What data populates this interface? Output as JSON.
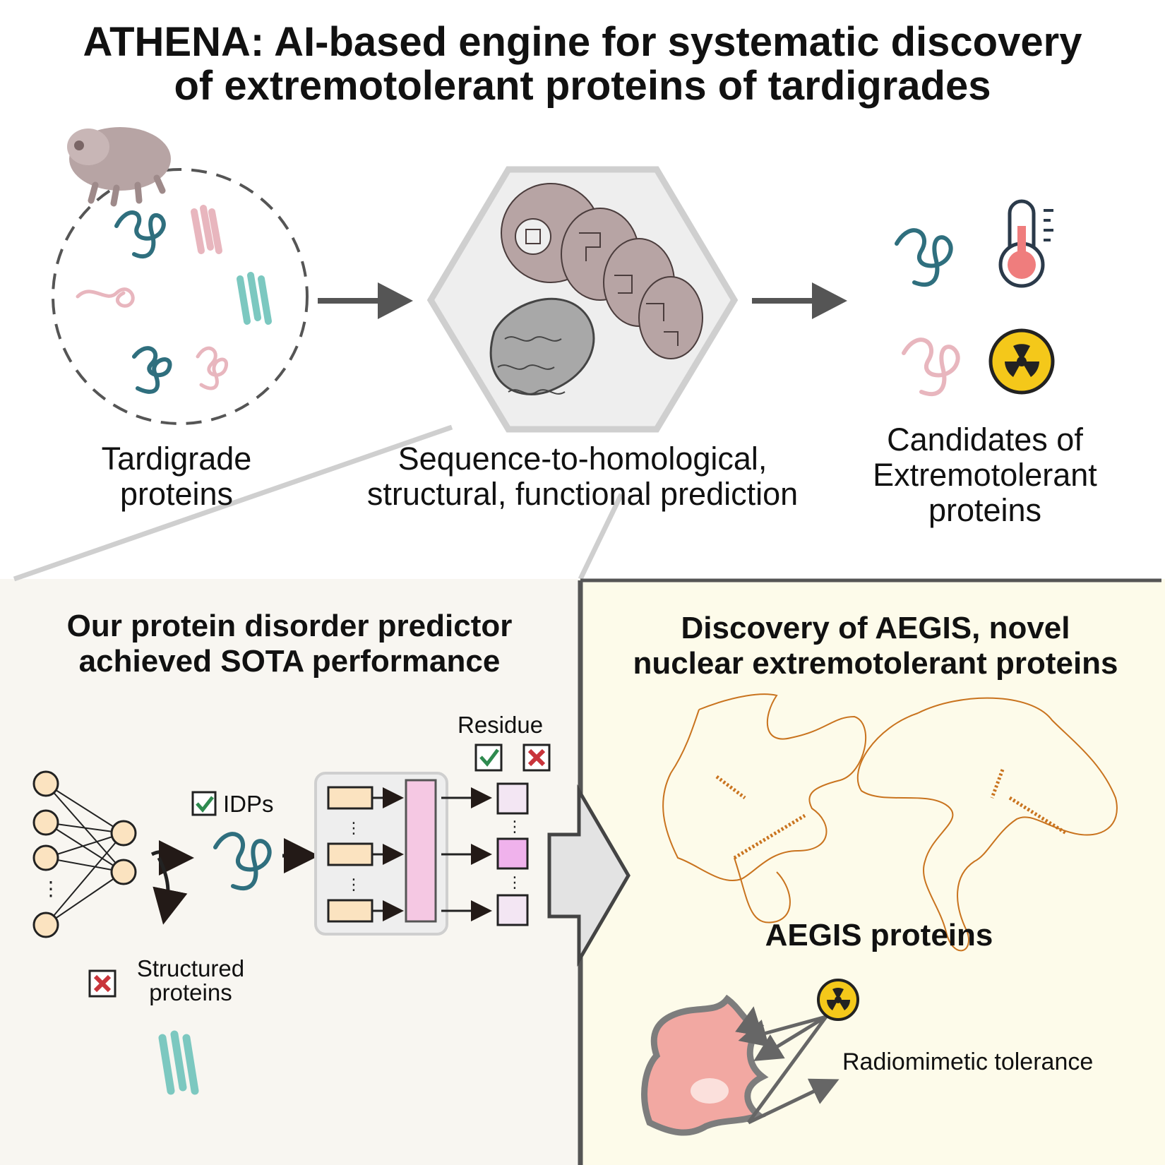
{
  "title": {
    "line1": "ATHENA: AI-based engine for systematic discovery",
    "line2": "of extremotolerant proteins of tardigrades"
  },
  "top": {
    "tardigrade_label": [
      "Tardigrade",
      "proteins"
    ],
    "prediction_label": [
      "Sequence-to-homological,",
      "structural, functional prediction"
    ],
    "candidates_label": [
      "Candidates of",
      "Extremotolerant",
      "proteins"
    ]
  },
  "left_panel": {
    "heading": [
      "Our protein disorder predictor",
      "achieved SOTA performance"
    ],
    "idps_label": "IDPs",
    "structured_label": [
      "Structured",
      "proteins"
    ],
    "residue_label": "Residue"
  },
  "right_panel": {
    "heading": [
      "Discovery of AEGIS, novel",
      "nuclear extremotolerant proteins"
    ],
    "aegis_label": "AEGIS proteins",
    "tolerance_label": "Radiomimetic tolerance"
  },
  "colors": {
    "teal_dark": "#2f6f7e",
    "pink_light": "#e8b6be",
    "teal_light": "#7cc8c0",
    "left_bg": "#f8f6f1",
    "right_bg": "#fdfbea",
    "hex_bg": "#eeeeee",
    "tardigrade": "#b7a4a4",
    "orange_protein": "#c9731e",
    "radiation_yellow": "#f4c81a",
    "cell_pink": "#f2a8a2",
    "check_green": "#2e8a4f",
    "cross_red": "#c9343b"
  },
  "icons": [
    "tardigrade-icon",
    "thermometer-icon",
    "radiation-icon",
    "check-icon",
    "cross-icon",
    "neural-network-icon",
    "cell-icon"
  ]
}
